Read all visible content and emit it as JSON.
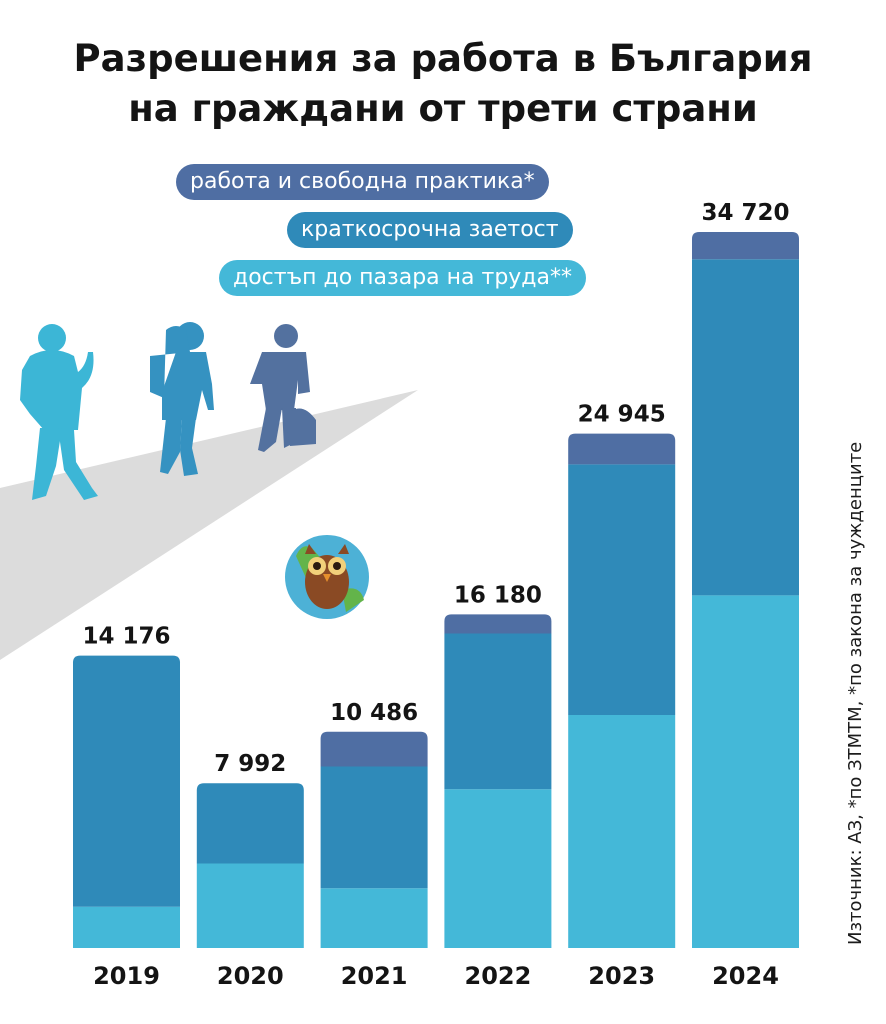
{
  "title_lines": [
    "Разрешения за работа в България",
    "на граждани от трети страни"
  ],
  "source_note": "Източник: АЗ, *по ЗТМТМ, *по закона за чужденците",
  "colors": {
    "work": "#4f6ea3",
    "short": "#2f8ab9",
    "access": "#44b8d8",
    "road": "#dcdcdc",
    "person1": "#3cb6d6",
    "person2": "#3592c1",
    "person3": "#53719f"
  },
  "chart_data": {
    "type": "bar",
    "stacked": true,
    "categories": [
      "2019",
      "2020",
      "2021",
      "2022",
      "2023",
      "2024"
    ],
    "totals": [
      "14 176",
      "7 992",
      "10 486",
      "16 180",
      "24 945",
      "34 720"
    ],
    "series": [
      {
        "name": "достъп до пазара на труда**",
        "color": "#44b8d8",
        "values": [
          2000,
          4100,
          2900,
          7700,
          11300,
          17100
        ]
      },
      {
        "name": "краткосрочна заетост",
        "color": "#2f8ab9",
        "values": [
          12176,
          3892,
          5900,
          7550,
          12150,
          16300
        ]
      },
      {
        "name": "работа и свободна практика*",
        "color": "#4f6ea3",
        "values": [
          0,
          0,
          1686,
          930,
          1495,
          1320
        ]
      }
    ],
    "ylim": [
      0,
      34720
    ],
    "grid": false,
    "legend_position": "top-center"
  }
}
